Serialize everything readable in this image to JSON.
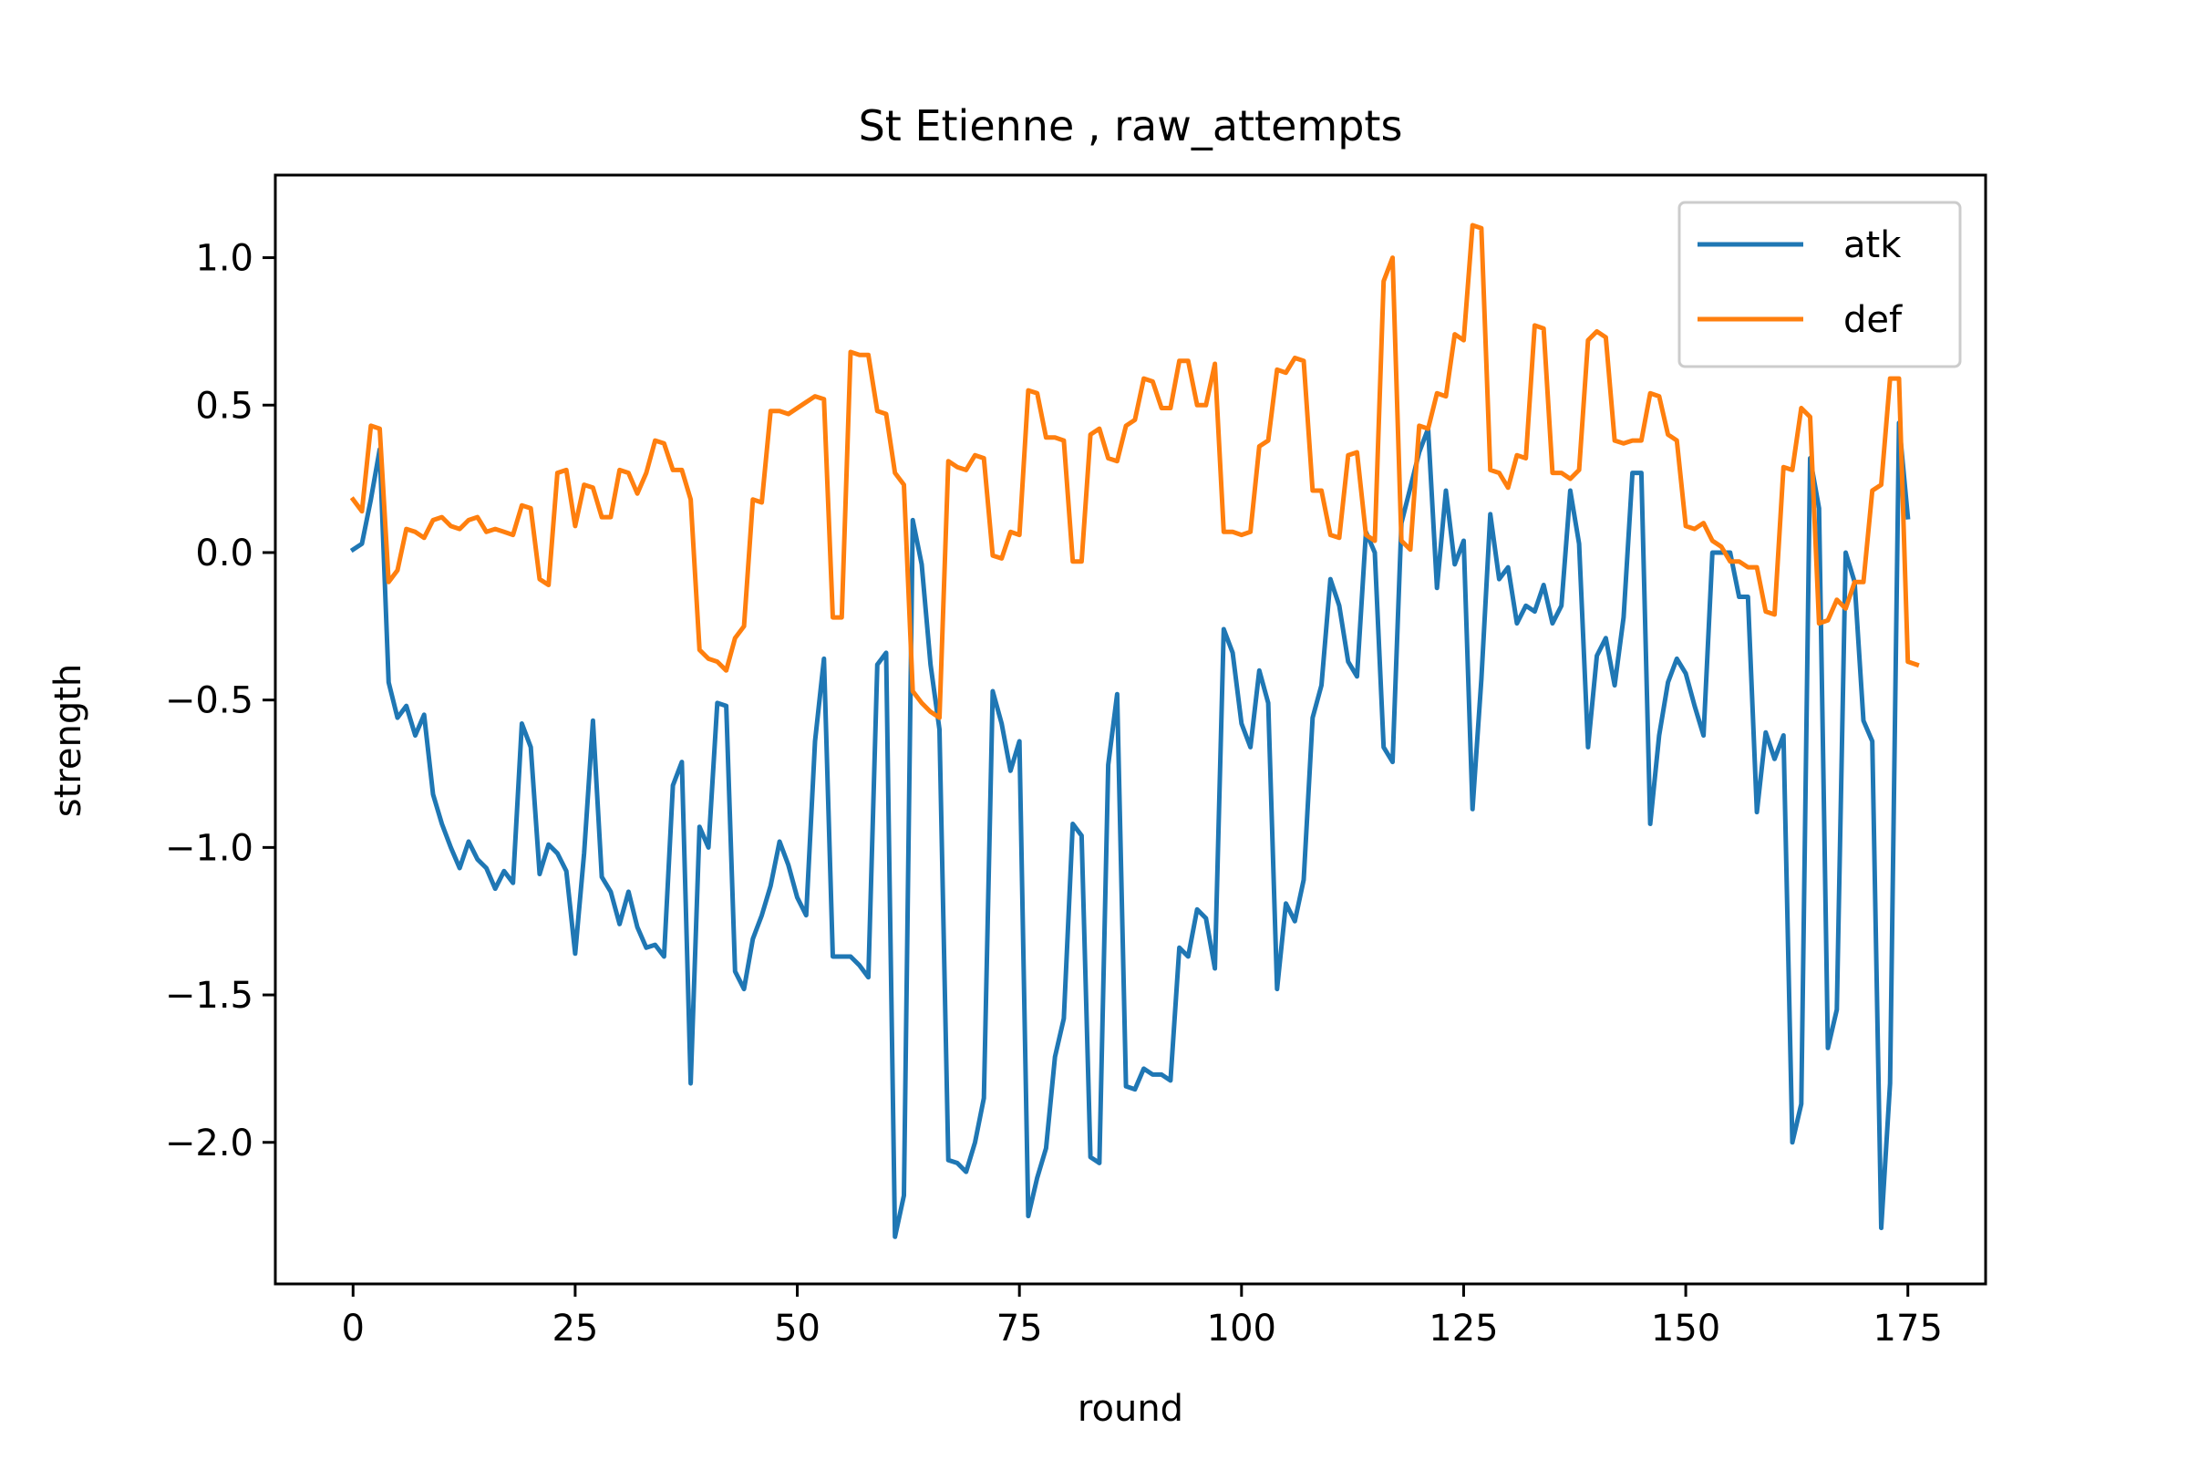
{
  "chart_data": {
    "type": "line",
    "title": "St Etienne , raw_attempts",
    "xlabel": "round",
    "ylabel": "strength",
    "xlim": [
      -8.75,
      183.75
    ],
    "ylim": [
      -2.48,
      1.28
    ],
    "xticks": [
      0,
      25,
      50,
      75,
      100,
      125,
      150,
      175
    ],
    "xtick_labels": [
      "0",
      "25",
      "50",
      "75",
      "100",
      "125",
      "150",
      "175"
    ],
    "yticks": [
      -2.0,
      -1.5,
      -1.0,
      -0.5,
      0.0,
      0.5,
      1.0
    ],
    "ytick_labels": [
      "−2.0",
      "−1.5",
      "−1.0",
      "−0.5",
      "0.0",
      "0.5",
      "1.0"
    ],
    "grid": false,
    "legend_position": "top-right",
    "series": [
      {
        "name": "atk",
        "color": "#1f77b4",
        "values": [
          0.01,
          0.03,
          0.18,
          0.35,
          -0.44,
          -0.56,
          -0.52,
          -0.62,
          -0.55,
          -0.82,
          -0.92,
          -1.0,
          -1.07,
          -0.98,
          -1.04,
          -1.07,
          -1.14,
          -1.08,
          -1.12,
          -0.58,
          -0.66,
          -1.09,
          -0.99,
          -1.02,
          -1.08,
          -1.36,
          -1.02,
          -0.57,
          -1.1,
          -1.15,
          -1.26,
          -1.15,
          -1.27,
          -1.34,
          -1.33,
          -1.37,
          -0.79,
          -0.71,
          -1.8,
          -0.93,
          -1.0,
          -0.51,
          -0.52,
          -1.42,
          -1.48,
          -1.31,
          -1.23,
          -1.13,
          -0.98,
          -1.06,
          -1.17,
          -1.23,
          -0.64,
          -0.36,
          -1.37,
          -1.37,
          -1.37,
          -1.4,
          -1.44,
          -0.38,
          -0.34,
          -2.32,
          -2.18,
          0.11,
          -0.04,
          -0.38,
          -0.6,
          -2.06,
          -2.07,
          -2.1,
          -2.0,
          -1.85,
          -0.47,
          -0.58,
          -0.74,
          -0.64,
          -2.25,
          -2.12,
          -2.02,
          -1.71,
          -1.58,
          -0.92,
          -0.96,
          -2.05,
          -2.07,
          -0.72,
          -0.48,
          -1.81,
          -1.82,
          -1.75,
          -1.77,
          -1.77,
          -1.79,
          -1.34,
          -1.37,
          -1.21,
          -1.24,
          -1.41,
          -0.26,
          -0.34,
          -0.58,
          -0.66,
          -0.4,
          -0.51,
          -1.48,
          -1.19,
          -1.25,
          -1.11,
          -0.56,
          -0.45,
          -0.09,
          -0.18,
          -0.37,
          -0.42,
          0.07,
          0.0,
          -0.66,
          -0.71,
          0.1,
          0.22,
          0.34,
          0.42,
          -0.12,
          0.21,
          -0.04,
          0.04,
          -0.87,
          -0.43,
          0.13,
          -0.09,
          -0.05,
          -0.24,
          -0.18,
          -0.2,
          -0.11,
          -0.24,
          -0.18,
          0.21,
          0.03,
          -0.66,
          -0.35,
          -0.29,
          -0.45,
          -0.22,
          0.27,
          0.27,
          -0.92,
          -0.62,
          -0.44,
          -0.36,
          -0.41,
          -0.52,
          -0.62,
          0.0,
          0.0,
          0.0,
          -0.15,
          -0.15,
          -0.88,
          -0.61,
          -0.7,
          -0.62,
          -2.0,
          -1.87,
          0.32,
          0.15,
          -1.68,
          -1.55,
          0.0,
          -0.1,
          -0.57,
          -0.64,
          -2.29,
          -1.8,
          0.44,
          0.12
        ]
      },
      {
        "name": "def",
        "color": "#ff7f0e",
        "values": [
          0.18,
          0.14,
          0.43,
          0.42,
          -0.1,
          -0.06,
          0.08,
          0.07,
          0.05,
          0.11,
          0.12,
          0.09,
          0.08,
          0.11,
          0.12,
          0.07,
          0.08,
          0.07,
          0.06,
          0.16,
          0.15,
          -0.09,
          -0.11,
          0.27,
          0.28,
          0.09,
          0.23,
          0.22,
          0.12,
          0.12,
          0.28,
          0.27,
          0.2,
          0.27,
          0.38,
          0.37,
          0.28,
          0.28,
          0.18,
          -0.33,
          -0.36,
          -0.37,
          -0.4,
          -0.29,
          -0.25,
          0.18,
          0.17,
          0.48,
          0.48,
          0.47,
          0.49,
          0.51,
          0.53,
          0.52,
          -0.22,
          -0.22,
          0.68,
          0.67,
          0.67,
          0.48,
          0.47,
          0.27,
          0.23,
          -0.47,
          -0.51,
          -0.54,
          -0.56,
          0.31,
          0.29,
          0.28,
          0.33,
          0.32,
          -0.01,
          -0.02,
          0.07,
          0.06,
          0.55,
          0.54,
          0.39,
          0.39,
          0.38,
          -0.03,
          -0.03,
          0.4,
          0.42,
          0.32,
          0.31,
          0.43,
          0.45,
          0.59,
          0.58,
          0.49,
          0.49,
          0.65,
          0.65,
          0.5,
          0.5,
          0.64,
          0.07,
          0.07,
          0.06,
          0.07,
          0.36,
          0.38,
          0.62,
          0.61,
          0.66,
          0.65,
          0.21,
          0.21,
          0.06,
          0.05,
          0.33,
          0.34,
          0.06,
          0.04,
          0.92,
          1.0,
          0.04,
          0.01,
          0.43,
          0.42,
          0.54,
          0.53,
          0.74,
          0.72,
          1.11,
          1.1,
          0.28,
          0.27,
          0.22,
          0.33,
          0.32,
          0.77,
          0.76,
          0.27,
          0.27,
          0.25,
          0.28,
          0.72,
          0.75,
          0.73,
          0.38,
          0.37,
          0.38,
          0.38,
          0.54,
          0.53,
          0.4,
          0.38,
          0.09,
          0.08,
          0.1,
          0.04,
          0.02,
          -0.03,
          -0.03,
          -0.05,
          -0.05,
          -0.2,
          -0.21,
          0.29,
          0.28,
          0.49,
          0.46,
          -0.24,
          -0.23,
          -0.16,
          -0.19,
          -0.1,
          -0.1,
          0.21,
          0.23,
          0.59,
          0.59,
          -0.37,
          -0.38
        ]
      }
    ]
  }
}
